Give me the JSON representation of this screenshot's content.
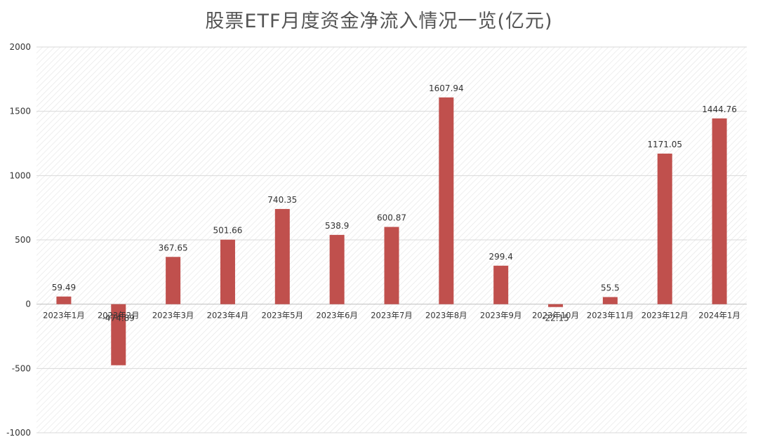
{
  "chart_data": {
    "type": "bar",
    "title": "股票ETF月度资金净流入情况一览(亿元)",
    "xlabel": "",
    "ylabel": "",
    "ylim": [
      -1000,
      2000
    ],
    "yticks": [
      2000,
      1500,
      1000,
      500,
      0,
      -500,
      -1000
    ],
    "grid": true,
    "categories": [
      "2023年1月",
      "2023年2月",
      "2023年3月",
      "2023年4月",
      "2023年5月",
      "2023年6月",
      "2023年7月",
      "2023年8月",
      "2023年9月",
      "2023年10月",
      "2023年11月",
      "2023年12月",
      "2024年1月"
    ],
    "values": [
      59.49,
      -474.89,
      367.65,
      501.66,
      740.35,
      538.9,
      600.87,
      1607.94,
      299.4,
      -22.15,
      55.5,
      1171.05,
      1444.76
    ],
    "value_labels": [
      "59.49",
      "-474.89",
      "367.65",
      "501.66",
      "740.35",
      "538.9",
      "600.87",
      "1607.94",
      "299.4",
      "-22.15",
      "55.5",
      "1171.05",
      "1444.76"
    ],
    "bar_color": "#c0504d",
    "gridline_color": "#d9d9d9",
    "background_pattern": "diagonal-hatch"
  }
}
